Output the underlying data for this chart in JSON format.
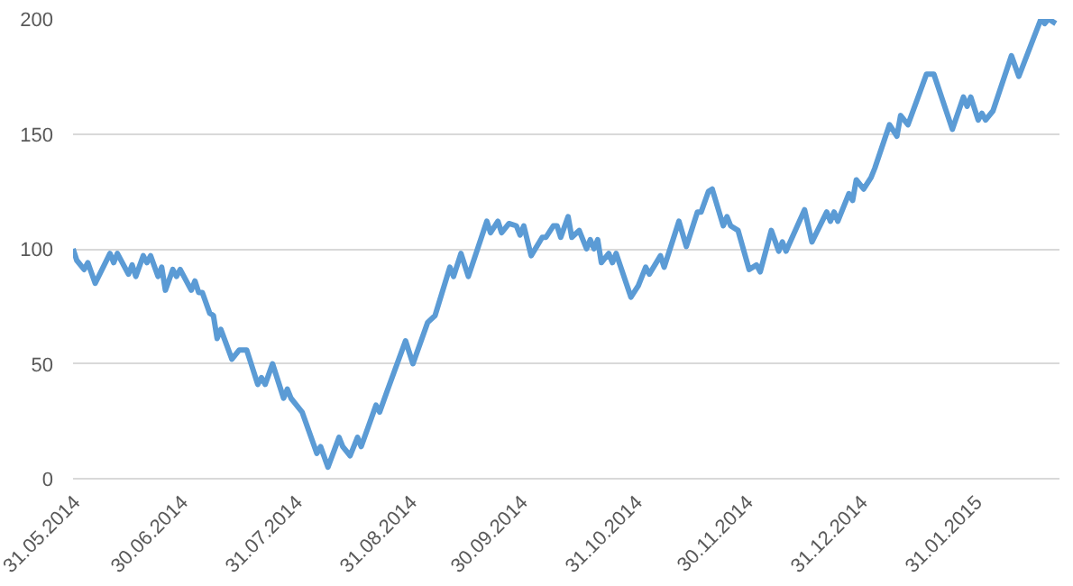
{
  "chart_data": {
    "type": "line",
    "x": [
      "2014-05-31",
      "2014-06-01",
      "2014-06-03",
      "2014-06-04",
      "2014-06-06",
      "2014-06-10",
      "2014-06-11",
      "2014-06-12",
      "2014-06-15",
      "2014-06-16",
      "2014-06-17",
      "2014-06-19",
      "2014-06-20",
      "2014-06-21",
      "2014-06-23",
      "2014-06-24",
      "2014-06-25",
      "2014-06-27",
      "2014-06-28",
      "2014-06-29",
      "2014-07-02",
      "2014-07-03",
      "2014-07-04",
      "2014-07-05",
      "2014-07-07",
      "2014-07-08",
      "2014-07-09",
      "2014-07-10",
      "2014-07-13",
      "2014-07-15",
      "2014-07-17",
      "2014-07-20",
      "2014-07-21",
      "2014-07-22",
      "2014-07-24",
      "2014-07-27",
      "2014-07-28",
      "2014-07-29",
      "2014-07-30",
      "2014-08-01",
      "2014-08-05",
      "2014-08-06",
      "2014-08-08",
      "2014-08-11",
      "2014-08-12",
      "2014-08-14",
      "2014-08-16",
      "2014-08-17",
      "2014-08-21",
      "2014-08-22",
      "2014-08-24",
      "2014-08-29",
      "2014-08-31",
      "2014-09-04",
      "2014-09-06",
      "2014-09-10",
      "2014-09-11",
      "2014-09-13",
      "2014-09-15",
      "2014-09-20",
      "2014-09-21",
      "2014-09-23",
      "2014-09-24",
      "2014-09-26",
      "2014-09-28",
      "2014-09-29",
      "2014-09-30",
      "2014-10-02",
      "2014-10-05",
      "2014-10-06",
      "2014-10-08",
      "2014-10-09",
      "2014-10-10",
      "2014-10-12",
      "2014-10-13",
      "2014-10-15",
      "2014-10-17",
      "2014-10-18",
      "2014-10-19",
      "2014-10-20",
      "2014-10-21",
      "2014-10-23",
      "2014-10-24",
      "2014-10-25",
      "2014-10-29",
      "2014-10-31",
      "2014-11-02",
      "2014-11-03",
      "2014-11-06",
      "2014-11-07",
      "2014-11-11",
      "2014-11-13",
      "2014-11-16",
      "2014-11-17",
      "2014-11-19",
      "2014-11-20",
      "2014-11-23",
      "2014-11-24",
      "2014-11-25",
      "2014-11-27",
      "2014-11-30",
      "2014-12-02",
      "2014-12-03",
      "2014-12-06",
      "2014-12-08",
      "2014-12-09",
      "2014-12-10",
      "2014-12-15",
      "2014-12-17",
      "2014-12-21",
      "2014-12-22",
      "2014-12-23",
      "2014-12-24",
      "2014-12-27",
      "2014-12-28",
      "2014-12-29",
      "2014-12-31",
      "2015-01-02",
      "2015-01-03",
      "2015-01-07",
      "2015-01-09",
      "2015-01-10",
      "2015-01-12",
      "2015-01-17",
      "2015-01-19",
      "2015-01-24",
      "2015-01-27",
      "2015-01-28",
      "2015-01-29",
      "2015-01-31",
      "2015-02-01",
      "2015-02-02",
      "2015-02-04",
      "2015-02-09",
      "2015-02-11",
      "2015-02-17",
      "2015-02-18",
      "2015-02-19",
      "2015-02-21"
    ],
    "series": [
      {
        "color": "#5b9bd5",
        "values": [
          100,
          95,
          91,
          94,
          85,
          98,
          94,
          98,
          89,
          93,
          88,
          97,
          94,
          97,
          88,
          92,
          82,
          91,
          88,
          91,
          82,
          86,
          81,
          81,
          72,
          71,
          61,
          65,
          52,
          56,
          56,
          41,
          44,
          41,
          50,
          35,
          39,
          35,
          33,
          29,
          11,
          14,
          5,
          18,
          14,
          10,
          18,
          14,
          32,
          29,
          38,
          60,
          50,
          68,
          71,
          92,
          88,
          98,
          88,
          112,
          107,
          112,
          107,
          111,
          110,
          106,
          110,
          97,
          105,
          105,
          110,
          110,
          105,
          114,
          105,
          108,
          100,
          104,
          100,
          104,
          94,
          98,
          94,
          98,
          79,
          84,
          92,
          89,
          97,
          92,
          112,
          101,
          116,
          116,
          125,
          126,
          110,
          114,
          110,
          108,
          91,
          93,
          90,
          108,
          99,
          103,
          99,
          117,
          103,
          116,
          112,
          116,
          112,
          124,
          121,
          130,
          126,
          131,
          135,
          154,
          149,
          158,
          154,
          176,
          176,
          152,
          166,
          162,
          166,
          156,
          159,
          156,
          160,
          184,
          175,
          200,
          198,
          200,
          198
        ]
      }
    ],
    "xlim": [
      "2014-05-31",
      "2015-02-22"
    ],
    "xticks": [
      {
        "value": "2014-05-31",
        "label": "31.05.2014"
      },
      {
        "value": "2014-06-30",
        "label": "30.06.2014"
      },
      {
        "value": "2014-07-31",
        "label": "31.07.2014"
      },
      {
        "value": "2014-08-31",
        "label": "31.08.2014"
      },
      {
        "value": "2014-09-30",
        "label": "30.09.2014"
      },
      {
        "value": "2014-10-31",
        "label": "31.10.2014"
      },
      {
        "value": "2014-11-30",
        "label": "30.11.2014"
      },
      {
        "value": "2014-12-31",
        "label": "31.12.2014"
      },
      {
        "value": "2015-01-31",
        "label": "31.01.2015"
      }
    ],
    "ylim": [
      0,
      200
    ],
    "yticks": [
      0,
      50,
      100,
      150,
      200
    ],
    "grid": "y",
    "marker": "none",
    "line_style": "solid"
  }
}
